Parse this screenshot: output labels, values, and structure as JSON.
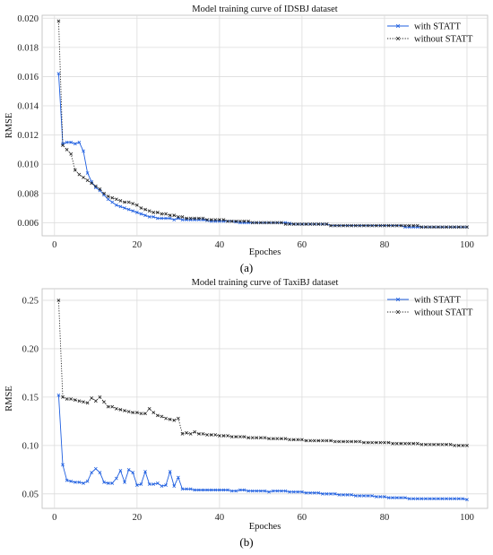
{
  "chart_data": [
    {
      "type": "line",
      "title": "Model training curve of IDSBJ dataset",
      "xlabel": "Epoches",
      "ylabel": "RMSE",
      "panel_label": "(a)",
      "xlim": [
        -3,
        105
      ],
      "ylim": [
        0.0051,
        0.0202
      ],
      "xticks": [
        0,
        20,
        40,
        60,
        80,
        100
      ],
      "yticks": [
        0.006,
        0.008,
        0.01,
        0.012,
        0.014,
        0.016,
        0.018,
        0.02
      ],
      "ytick_labels": [
        "0.006",
        "0.008",
        "0.010",
        "0.012",
        "0.014",
        "0.016",
        "0.018",
        "0.020"
      ],
      "grid": true,
      "legend": "top-right",
      "series": [
        {
          "name": "with STATT",
          "color": "#1f5fe0",
          "marker": "x",
          "style": "solid",
          "x": [
            1,
            2,
            3,
            4,
            5,
            6,
            7,
            8,
            9,
            10,
            11,
            12,
            13,
            14,
            15,
            16,
            17,
            18,
            19,
            20,
            21,
            22,
            23,
            24,
            25,
            26,
            27,
            28,
            29,
            30,
            31,
            32,
            33,
            34,
            35,
            36,
            37,
            38,
            39,
            40,
            41,
            42,
            43,
            44,
            45,
            46,
            47,
            48,
            49,
            50,
            51,
            52,
            53,
            54,
            55,
            56,
            57,
            58,
            59,
            60,
            61,
            62,
            63,
            64,
            65,
            66,
            67,
            68,
            69,
            70,
            71,
            72,
            73,
            74,
            75,
            76,
            77,
            78,
            79,
            80,
            81,
            82,
            83,
            84,
            85,
            86,
            87,
            88,
            89,
            90,
            91,
            92,
            93,
            94,
            95,
            96,
            97,
            98,
            99,
            100
          ],
          "y": [
            0.0162,
            0.0114,
            0.0115,
            0.0115,
            0.0114,
            0.0115,
            0.0109,
            0.0094,
            0.0088,
            0.0084,
            0.0082,
            0.0079,
            0.0076,
            0.0074,
            0.0072,
            0.0071,
            0.007,
            0.0069,
            0.0068,
            0.0067,
            0.0066,
            0.0065,
            0.0064,
            0.0064,
            0.0063,
            0.0063,
            0.0063,
            0.0063,
            0.0062,
            0.0063,
            0.0062,
            0.0062,
            0.0062,
            0.0062,
            0.0062,
            0.0062,
            0.00615,
            0.0061,
            0.0061,
            0.0061,
            0.0061,
            0.0061,
            0.0061,
            0.00605,
            0.006,
            0.006,
            0.006,
            0.006,
            0.006,
            0.006,
            0.006,
            0.006,
            0.006,
            0.006,
            0.006,
            0.006,
            0.00595,
            0.0059,
            0.0059,
            0.0059,
            0.0059,
            0.0059,
            0.0059,
            0.0059,
            0.0059,
            0.0059,
            0.0058,
            0.0058,
            0.0058,
            0.0058,
            0.0058,
            0.0058,
            0.0058,
            0.0058,
            0.0058,
            0.0058,
            0.0058,
            0.0058,
            0.0058,
            0.0058,
            0.0058,
            0.0058,
            0.0058,
            0.0058,
            0.0057,
            0.0057,
            0.0057,
            0.0057,
            0.0057,
            0.0057,
            0.0057,
            0.0057,
            0.0057,
            0.0057,
            0.0057,
            0.0057,
            0.0057,
            0.0057,
            0.0057,
            0.0057
          ]
        },
        {
          "name": "without STATT",
          "color": "#222222",
          "marker": "x",
          "style": "dotted",
          "x": [
            1,
            2,
            3,
            4,
            5,
            6,
            7,
            8,
            9,
            10,
            11,
            12,
            13,
            14,
            15,
            16,
            17,
            18,
            19,
            20,
            21,
            22,
            23,
            24,
            25,
            26,
            27,
            28,
            29,
            30,
            31,
            32,
            33,
            34,
            35,
            36,
            37,
            38,
            39,
            40,
            41,
            42,
            43,
            44,
            45,
            46,
            47,
            48,
            49,
            50,
            51,
            52,
            53,
            54,
            55,
            56,
            57,
            58,
            59,
            60,
            61,
            62,
            63,
            64,
            65,
            66,
            67,
            68,
            69,
            70,
            71,
            72,
            73,
            74,
            75,
            76,
            77,
            78,
            79,
            80,
            81,
            82,
            83,
            84,
            85,
            86,
            87,
            88,
            89,
            90,
            91,
            92,
            93,
            94,
            95,
            96,
            97,
            98,
            99,
            100
          ],
          "y": [
            0.0198,
            0.0113,
            0.011,
            0.0107,
            0.0096,
            0.0093,
            0.0091,
            0.0089,
            0.0087,
            0.0085,
            0.0083,
            0.008,
            0.0078,
            0.0077,
            0.0076,
            0.0075,
            0.0074,
            0.0074,
            0.0073,
            0.0072,
            0.007,
            0.0069,
            0.0068,
            0.0067,
            0.0067,
            0.0066,
            0.0066,
            0.0065,
            0.0065,
            0.0064,
            0.0064,
            0.0063,
            0.0063,
            0.0063,
            0.0063,
            0.0063,
            0.0062,
            0.0062,
            0.0062,
            0.0062,
            0.0062,
            0.0061,
            0.0061,
            0.0061,
            0.0061,
            0.0061,
            0.0061,
            0.006,
            0.006,
            0.006,
            0.006,
            0.006,
            0.006,
            0.006,
            0.006,
            0.0059,
            0.0059,
            0.0059,
            0.0059,
            0.0059,
            0.0059,
            0.0059,
            0.0059,
            0.0059,
            0.0059,
            0.0059,
            0.0058,
            0.0058,
            0.0058,
            0.0058,
            0.0058,
            0.0058,
            0.0058,
            0.0058,
            0.0058,
            0.0058,
            0.0058,
            0.0058,
            0.0058,
            0.0058,
            0.0058,
            0.0058,
            0.0058,
            0.0058,
            0.0058,
            0.0058,
            0.0058,
            0.0058,
            0.0057,
            0.0057,
            0.0057,
            0.0057,
            0.0057,
            0.0057,
            0.0057,
            0.0057,
            0.0057,
            0.0057,
            0.0057,
            0.0057
          ]
        }
      ]
    },
    {
      "type": "line",
      "title": "Model training curve of TaxiBJ dataset",
      "xlabel": "Epoches",
      "ylabel": "RMSE",
      "panel_label": "(b)",
      "xlim": [
        -3,
        105
      ],
      "ylim": [
        0.035,
        0.262
      ],
      "xticks": [
        0,
        20,
        40,
        60,
        80,
        100
      ],
      "yticks": [
        0.05,
        0.1,
        0.15,
        0.2,
        0.25
      ],
      "ytick_labels": [
        "0.05",
        "0.10",
        "0.15",
        "0.20",
        "0.25"
      ],
      "grid": true,
      "legend": "top-right",
      "series": [
        {
          "name": "with STATT",
          "color": "#1f5fe0",
          "marker": "x",
          "style": "solid",
          "x": [
            1,
            2,
            3,
            4,
            5,
            6,
            7,
            8,
            9,
            10,
            11,
            12,
            13,
            14,
            15,
            16,
            17,
            18,
            19,
            20,
            21,
            22,
            23,
            24,
            25,
            26,
            27,
            28,
            29,
            30,
            31,
            32,
            33,
            34,
            35,
            36,
            37,
            38,
            39,
            40,
            41,
            42,
            43,
            44,
            45,
            46,
            47,
            48,
            49,
            50,
            51,
            52,
            53,
            54,
            55,
            56,
            57,
            58,
            59,
            60,
            61,
            62,
            63,
            64,
            65,
            66,
            67,
            68,
            69,
            70,
            71,
            72,
            73,
            74,
            75,
            76,
            77,
            78,
            79,
            80,
            81,
            82,
            83,
            84,
            85,
            86,
            87,
            88,
            89,
            90,
            91,
            92,
            93,
            94,
            95,
            96,
            97,
            98,
            99,
            100
          ],
          "y": [
            0.152,
            0.08,
            0.064,
            0.063,
            0.062,
            0.062,
            0.061,
            0.063,
            0.072,
            0.076,
            0.072,
            0.062,
            0.061,
            0.061,
            0.066,
            0.074,
            0.062,
            0.075,
            0.072,
            0.059,
            0.06,
            0.073,
            0.06,
            0.06,
            0.061,
            0.058,
            0.059,
            0.073,
            0.058,
            0.067,
            0.055,
            0.055,
            0.055,
            0.054,
            0.054,
            0.054,
            0.054,
            0.054,
            0.054,
            0.054,
            0.054,
            0.054,
            0.053,
            0.053,
            0.054,
            0.054,
            0.053,
            0.053,
            0.053,
            0.053,
            0.053,
            0.052,
            0.053,
            0.053,
            0.053,
            0.053,
            0.052,
            0.052,
            0.052,
            0.052,
            0.051,
            0.051,
            0.051,
            0.051,
            0.05,
            0.05,
            0.05,
            0.05,
            0.049,
            0.049,
            0.049,
            0.049,
            0.048,
            0.048,
            0.048,
            0.048,
            0.048,
            0.047,
            0.047,
            0.047,
            0.046,
            0.046,
            0.046,
            0.046,
            0.046,
            0.045,
            0.045,
            0.045,
            0.045,
            0.045,
            0.045,
            0.045,
            0.045,
            0.045,
            0.045,
            0.045,
            0.045,
            0.045,
            0.045,
            0.044
          ]
        },
        {
          "name": "without STATT",
          "color": "#222222",
          "marker": "x",
          "style": "dotted",
          "x": [
            1,
            2,
            3,
            4,
            5,
            6,
            7,
            8,
            9,
            10,
            11,
            12,
            13,
            14,
            15,
            16,
            17,
            18,
            19,
            20,
            21,
            22,
            23,
            24,
            25,
            26,
            27,
            28,
            29,
            30,
            31,
            32,
            33,
            34,
            35,
            36,
            37,
            38,
            39,
            40,
            41,
            42,
            43,
            44,
            45,
            46,
            47,
            48,
            49,
            50,
            51,
            52,
            53,
            54,
            55,
            56,
            57,
            58,
            59,
            60,
            61,
            62,
            63,
            64,
            65,
            66,
            67,
            68,
            69,
            70,
            71,
            72,
            73,
            74,
            75,
            76,
            77,
            78,
            79,
            80,
            81,
            82,
            83,
            84,
            85,
            86,
            87,
            88,
            89,
            90,
            91,
            92,
            93,
            94,
            95,
            96,
            97,
            98,
            99,
            100
          ],
          "y": [
            0.25,
            0.15,
            0.148,
            0.148,
            0.147,
            0.146,
            0.145,
            0.144,
            0.149,
            0.146,
            0.15,
            0.145,
            0.14,
            0.14,
            0.138,
            0.137,
            0.136,
            0.135,
            0.134,
            0.134,
            0.133,
            0.133,
            0.138,
            0.134,
            0.131,
            0.13,
            0.128,
            0.127,
            0.126,
            0.128,
            0.112,
            0.113,
            0.112,
            0.114,
            0.112,
            0.112,
            0.111,
            0.111,
            0.111,
            0.11,
            0.11,
            0.11,
            0.109,
            0.109,
            0.109,
            0.109,
            0.108,
            0.108,
            0.108,
            0.108,
            0.108,
            0.107,
            0.107,
            0.107,
            0.107,
            0.107,
            0.106,
            0.106,
            0.106,
            0.106,
            0.105,
            0.105,
            0.105,
            0.105,
            0.105,
            0.105,
            0.105,
            0.104,
            0.104,
            0.104,
            0.104,
            0.104,
            0.104,
            0.104,
            0.103,
            0.103,
            0.103,
            0.103,
            0.103,
            0.103,
            0.103,
            0.102,
            0.102,
            0.102,
            0.102,
            0.102,
            0.102,
            0.102,
            0.101,
            0.101,
            0.101,
            0.101,
            0.101,
            0.101,
            0.101,
            0.101,
            0.1,
            0.1,
            0.1,
            0.1
          ]
        }
      ]
    }
  ]
}
